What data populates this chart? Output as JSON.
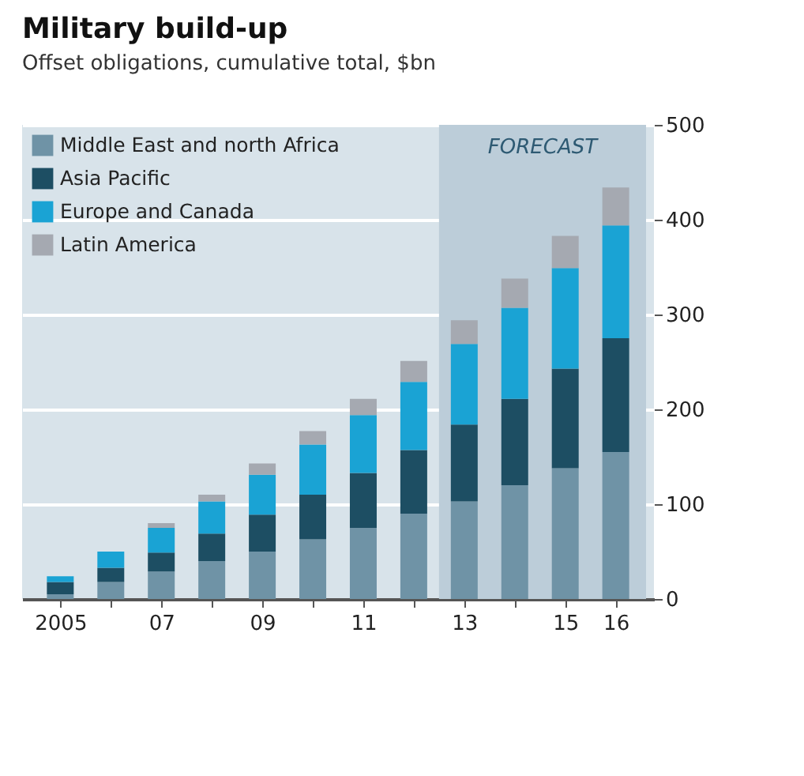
{
  "chart_data": {
    "type": "bar",
    "title": "Military build-up",
    "subtitle": "Offset obligations, cumulative total, $bn",
    "categories": [
      "2005",
      null,
      "07",
      null,
      "09",
      null,
      "11",
      null,
      "13",
      null,
      "15",
      "16"
    ],
    "stacked": true,
    "series": [
      {
        "name": "Middle East and north Africa",
        "color": "#6f93a6",
        "values": [
          5,
          18,
          29,
          40,
          50,
          63,
          75,
          90,
          103,
          120,
          138,
          155
        ]
      },
      {
        "name": "Asia Pacific",
        "color": "#1d4e63",
        "values": [
          13,
          15,
          20,
          29,
          39,
          47,
          58,
          67,
          81,
          91,
          105,
          120
        ]
      },
      {
        "name": "Europe and Canada",
        "color": "#1aa3d4",
        "values": [
          6,
          17,
          26,
          34,
          42,
          53,
          61,
          72,
          85,
          96,
          106,
          119
        ]
      },
      {
        "name": "Latin America",
        "color": "#a5a9b1",
        "values": [
          null,
          null,
          5,
          7,
          12,
          14,
          17,
          22,
          25,
          31,
          34,
          40
        ]
      }
    ],
    "ylim": [
      0,
      500
    ],
    "yticks": [
      0,
      100,
      200,
      300,
      400,
      500
    ],
    "grid": "y",
    "legend": "top left",
    "bands": [
      {
        "axis": "x",
        "from": "13",
        "to": "16",
        "label": "FORECAST",
        "color": "#bccdd9"
      }
    ]
  }
}
